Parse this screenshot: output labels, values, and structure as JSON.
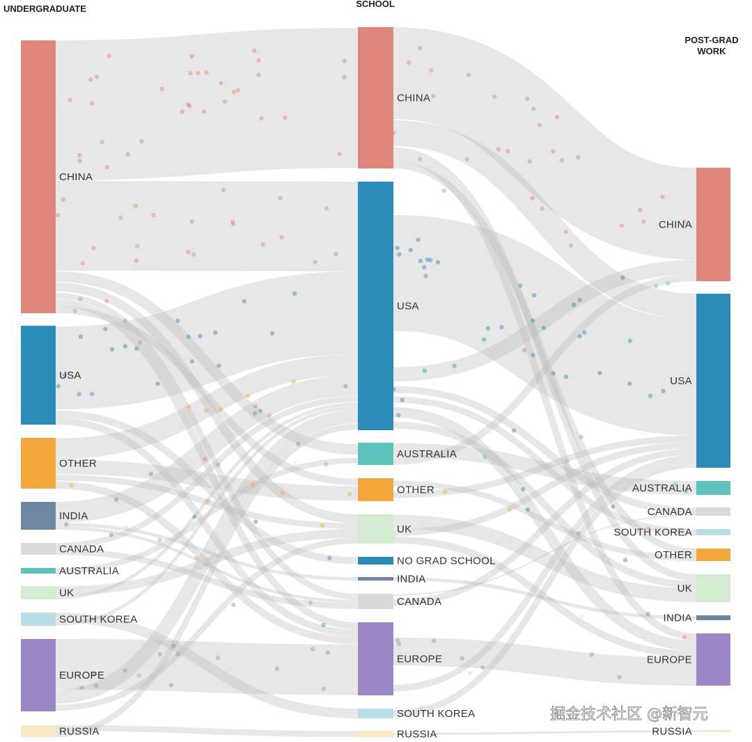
{
  "columns": {
    "undergraduate": "UNDERGRADUATE",
    "school": "SCHOOL",
    "postgrad_line1": "POST-GRAD",
    "postgrad_line2": "WORK"
  },
  "watermark": "掘金技术社区 @新智元",
  "colors": {
    "china": "#de867a",
    "usa": "#2c8cb9",
    "australia": "#5ec3bc",
    "other": "#f4a73d",
    "india": "#6e87a3",
    "canada": "#d9d9d9",
    "uk": "#d3ecd0",
    "south_korea": "#b8dde4",
    "europe": "#9c87c6",
    "russia": "#fbe9c5",
    "no_grad": "#2c8cb9"
  },
  "chart_data": {
    "type": "sankey",
    "title": "",
    "stages": [
      "UNDERGRADUATE",
      "SCHOOL",
      "POST-GRAD WORK"
    ],
    "nodes": {
      "undergraduate": [
        {
          "id": "u_china",
          "label": "CHINA",
          "color": "#de867a",
          "value": 39
        },
        {
          "id": "u_usa",
          "label": "USA",
          "color": "#2c8cb9",
          "value": 14
        },
        {
          "id": "u_other",
          "label": "OTHER",
          "color": "#f4a73d",
          "value": 7
        },
        {
          "id": "u_india",
          "label": "INDIA",
          "color": "#6e87a3",
          "value": 4
        },
        {
          "id": "u_canada",
          "label": "CANADA",
          "color": "#d9d9d9",
          "value": 2
        },
        {
          "id": "u_australia",
          "label": "AUSTRALIA",
          "color": "#5ec3bc",
          "value": 1
        },
        {
          "id": "u_uk",
          "label": "UK",
          "color": "#d3ecd0",
          "value": 2
        },
        {
          "id": "u_south_korea",
          "label": "SOUTH KOREA",
          "color": "#b8dde4",
          "value": 2
        },
        {
          "id": "u_europe",
          "label": "EUROPE",
          "color": "#9c87c6",
          "value": 10
        },
        {
          "id": "u_russia",
          "label": "RUSSIA",
          "color": "#fbe9c5",
          "value": 2
        }
      ],
      "school": [
        {
          "id": "s_china",
          "label": "CHINA",
          "color": "#de867a",
          "value": 20
        },
        {
          "id": "s_usa",
          "label": "USA",
          "color": "#2c8cb9",
          "value": 36
        },
        {
          "id": "s_australia",
          "label": "AUSTRALIA",
          "color": "#5ec3bc",
          "value": 3
        },
        {
          "id": "s_other",
          "label": "OTHER",
          "color": "#f4a73d",
          "value": 3
        },
        {
          "id": "s_uk",
          "label": "UK",
          "color": "#d3ecd0",
          "value": 4
        },
        {
          "id": "s_no_grad",
          "label": "NO GRAD SCHOOL",
          "color": "#2c8cb9",
          "value": 1
        },
        {
          "id": "s_india",
          "label": "INDIA",
          "color": "#6e87a3",
          "value": 0.5
        },
        {
          "id": "s_canada",
          "label": "CANADA",
          "color": "#d9d9d9",
          "value": 2
        },
        {
          "id": "s_europe",
          "label": "EUROPE",
          "color": "#9c87c6",
          "value": 10
        },
        {
          "id": "s_south_korea",
          "label": "SOUTH KOREA",
          "color": "#b8dde4",
          "value": 1.5
        },
        {
          "id": "s_russia",
          "label": "RUSSIA",
          "color": "#fbe9c5",
          "value": 1
        }
      ],
      "postgrad": [
        {
          "id": "p_china",
          "label": "CHINA",
          "color": "#de867a",
          "value": 16
        },
        {
          "id": "p_usa",
          "label": "USA",
          "color": "#2c8cb9",
          "value": 25
        },
        {
          "id": "p_australia",
          "label": "AUSTRALIA",
          "color": "#5ec3bc",
          "value": 2
        },
        {
          "id": "p_canada",
          "label": "CANADA",
          "color": "#d9d9d9",
          "value": 1.2
        },
        {
          "id": "p_south_korea",
          "label": "SOUTH KOREA",
          "color": "#b8dde4",
          "value": 1
        },
        {
          "id": "p_other",
          "label": "OTHER",
          "color": "#f4a73d",
          "value": 1.8
        },
        {
          "id": "p_uk",
          "label": "UK",
          "color": "#d3ecd0",
          "value": 4
        },
        {
          "id": "p_india",
          "label": "INDIA",
          "color": "#6e87a3",
          "value": 0.6
        },
        {
          "id": "p_europe",
          "label": "EUROPE",
          "color": "#9c87c6",
          "value": 7.5
        },
        {
          "id": "p_russia",
          "label": "RUSSIA",
          "color": "#fbe9c5",
          "value": 0.3
        }
      ]
    },
    "links": [
      {
        "source": "u_china",
        "target": "s_china",
        "value": 20
      },
      {
        "source": "u_china",
        "target": "s_usa",
        "value": 13
      },
      {
        "source": "u_china",
        "target": "s_australia",
        "value": 1.5
      },
      {
        "source": "u_china",
        "target": "s_uk",
        "value": 1.5
      },
      {
        "source": "u_china",
        "target": "s_canada",
        "value": 1
      },
      {
        "source": "u_china",
        "target": "s_europe",
        "value": 1
      },
      {
        "source": "u_china",
        "target": "s_other",
        "value": 1
      },
      {
        "source": "u_usa",
        "target": "s_usa",
        "value": 12
      },
      {
        "source": "u_usa",
        "target": "s_no_grad",
        "value": 1
      },
      {
        "source": "u_usa",
        "target": "s_europe",
        "value": 1
      },
      {
        "source": "u_other",
        "target": "s_usa",
        "value": 3
      },
      {
        "source": "u_other",
        "target": "s_other",
        "value": 2
      },
      {
        "source": "u_other",
        "target": "s_uk",
        "value": 1
      },
      {
        "source": "u_other",
        "target": "s_europe",
        "value": 1
      },
      {
        "source": "u_india",
        "target": "s_usa",
        "value": 3
      },
      {
        "source": "u_india",
        "target": "s_india",
        "value": 0.5
      },
      {
        "source": "u_india",
        "target": "s_canada",
        "value": 0.5
      },
      {
        "source": "u_canada",
        "target": "s_usa",
        "value": 1
      },
      {
        "source": "u_canada",
        "target": "s_canada",
        "value": 1
      },
      {
        "source": "u_australia",
        "target": "s_australia",
        "value": 1
      },
      {
        "source": "u_uk",
        "target": "s_uk",
        "value": 1.5
      },
      {
        "source": "u_uk",
        "target": "s_usa",
        "value": 0.5
      },
      {
        "source": "u_south_korea",
        "target": "s_south_korea",
        "value": 1.5
      },
      {
        "source": "u_south_korea",
        "target": "s_usa",
        "value": 0.5
      },
      {
        "source": "u_europe",
        "target": "s_europe",
        "value": 7
      },
      {
        "source": "u_europe",
        "target": "s_usa",
        "value": 2
      },
      {
        "source": "u_europe",
        "target": "s_uk",
        "value": 1
      },
      {
        "source": "u_russia",
        "target": "s_russia",
        "value": 1
      },
      {
        "source": "u_russia",
        "target": "s_usa",
        "value": 1
      },
      {
        "source": "s_china",
        "target": "p_china",
        "value": 13
      },
      {
        "source": "s_china",
        "target": "p_usa",
        "value": 4
      },
      {
        "source": "s_china",
        "target": "p_uk",
        "value": 1
      },
      {
        "source": "s_china",
        "target": "p_europe",
        "value": 1
      },
      {
        "source": "s_china",
        "target": "p_other",
        "value": 1
      },
      {
        "source": "s_usa",
        "target": "p_usa",
        "value": 18
      },
      {
        "source": "s_usa",
        "target": "p_china",
        "value": 2
      },
      {
        "source": "s_usa",
        "target": "p_canada",
        "value": 1
      },
      {
        "source": "s_usa",
        "target": "p_south_korea",
        "value": 1
      },
      {
        "source": "s_usa",
        "target": "p_europe",
        "value": 1.5
      },
      {
        "source": "s_usa",
        "target": "p_uk",
        "value": 1
      },
      {
        "source": "s_australia",
        "target": "p_australia",
        "value": 2
      },
      {
        "source": "s_australia",
        "target": "p_china",
        "value": 1
      },
      {
        "source": "s_other",
        "target": "p_other",
        "value": 0.8
      },
      {
        "source": "s_other",
        "target": "p_usa",
        "value": 1
      },
      {
        "source": "s_uk",
        "target": "p_uk",
        "value": 2
      },
      {
        "source": "s_uk",
        "target": "p_usa",
        "value": 1
      },
      {
        "source": "s_uk",
        "target": "p_europe",
        "value": 1
      },
      {
        "source": "s_canada",
        "target": "p_canada",
        "value": 0.2
      },
      {
        "source": "s_canada",
        "target": "p_usa",
        "value": 1
      },
      {
        "source": "s_india",
        "target": "p_india",
        "value": 0.5
      },
      {
        "source": "s_europe",
        "target": "p_europe",
        "value": 4
      },
      {
        "source": "s_europe",
        "target": "p_usa",
        "value": 1
      },
      {
        "source": "s_europe",
        "target": "p_china",
        "value": 0
      },
      {
        "source": "s_south_korea",
        "target": "p_usa",
        "value": 1
      },
      {
        "source": "s_russia",
        "target": "p_russia",
        "value": 0.3
      }
    ]
  }
}
